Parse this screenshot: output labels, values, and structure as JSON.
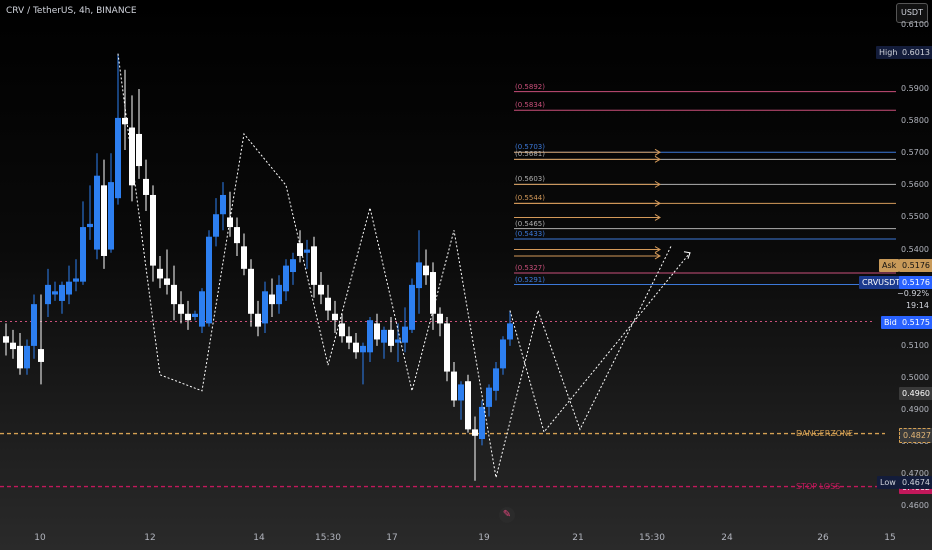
{
  "header": {
    "title": "CRV / TetherUS, 4h, BINANCE",
    "currency_button": "USDT"
  },
  "colors": {
    "up": "#2d7ff0",
    "down": "#ffffff",
    "pattern": "#ffffff",
    "danger": "#d6a153",
    "stoploss": "#c2185b",
    "pink": "#c94f7a",
    "blue": "#3c78d8",
    "orange": "#d49a5a",
    "gray": "#b0b0b0"
  },
  "chart_data": {
    "type": "candlestick",
    "title": "CRV / TetherUS, 4h, BINANCE",
    "x_ticks": [
      "10",
      "12",
      "14",
      "15:30",
      "17",
      "19",
      "21",
      "15:30",
      "24",
      "26",
      "15"
    ],
    "y_ticks": [
      "0.6100",
      "0.5900",
      "0.5800",
      "0.5700",
      "0.5600",
      "0.5500",
      "0.5400",
      "0.5100",
      "0.5000",
      "0.4900",
      "0.4800",
      "0.4700",
      "0.4600"
    ],
    "ylim": [
      0.46,
      0.61
    ],
    "high": "0.6013",
    "low": "0.4674",
    "ask": "0.5176",
    "bid": "0.5175",
    "last": {
      "symbol": "CRVUSDT",
      "price": "0.5176",
      "change": "−0.92%",
      "countdown": "19:14"
    },
    "marker_price": "0.4960",
    "candles": [
      {
        "o": 0.513,
        "h": 0.517,
        "l": 0.507,
        "c": 0.511
      },
      {
        "o": 0.511,
        "h": 0.515,
        "l": 0.506,
        "c": 0.509
      },
      {
        "o": 0.51,
        "h": 0.514,
        "l": 0.501,
        "c": 0.503
      },
      {
        "o": 0.503,
        "h": 0.512,
        "l": 0.501,
        "c": 0.51
      },
      {
        "o": 0.51,
        "h": 0.526,
        "l": 0.506,
        "c": 0.523
      },
      {
        "o": 0.509,
        "h": 0.526,
        "l": 0.498,
        "c": 0.505
      },
      {
        "o": 0.523,
        "h": 0.534,
        "l": 0.519,
        "c": 0.529
      },
      {
        "o": 0.526,
        "h": 0.53,
        "l": 0.524,
        "c": 0.527
      },
      {
        "o": 0.524,
        "h": 0.53,
        "l": 0.52,
        "c": 0.529
      },
      {
        "o": 0.526,
        "h": 0.535,
        "l": 0.523,
        "c": 0.53
      },
      {
        "o": 0.53,
        "h": 0.537,
        "l": 0.527,
        "c": 0.531
      },
      {
        "o": 0.53,
        "h": 0.555,
        "l": 0.529,
        "c": 0.547
      },
      {
        "o": 0.547,
        "h": 0.56,
        "l": 0.543,
        "c": 0.548
      },
      {
        "o": 0.54,
        "h": 0.57,
        "l": 0.537,
        "c": 0.563
      },
      {
        "o": 0.56,
        "h": 0.568,
        "l": 0.534,
        "c": 0.538
      },
      {
        "o": 0.54,
        "h": 0.57,
        "l": 0.539,
        "c": 0.561
      },
      {
        "o": 0.556,
        "h": 0.601,
        "l": 0.554,
        "c": 0.581
      },
      {
        "o": 0.581,
        "h": 0.596,
        "l": 0.571,
        "c": 0.579
      },
      {
        "o": 0.578,
        "h": 0.588,
        "l": 0.555,
        "c": 0.56
      },
      {
        "o": 0.576,
        "h": 0.59,
        "l": 0.562,
        "c": 0.566
      },
      {
        "o": 0.562,
        "h": 0.568,
        "l": 0.552,
        "c": 0.557
      },
      {
        "o": 0.557,
        "h": 0.56,
        "l": 0.53,
        "c": 0.535
      },
      {
        "o": 0.534,
        "h": 0.538,
        "l": 0.528,
        "c": 0.531
      },
      {
        "o": 0.531,
        "h": 0.54,
        "l": 0.526,
        "c": 0.529
      },
      {
        "o": 0.529,
        "h": 0.535,
        "l": 0.518,
        "c": 0.523
      },
      {
        "o": 0.523,
        "h": 0.527,
        "l": 0.517,
        "c": 0.52
      },
      {
        "o": 0.52,
        "h": 0.524,
        "l": 0.515,
        "c": 0.518
      },
      {
        "o": 0.519,
        "h": 0.521,
        "l": 0.518,
        "c": 0.52
      },
      {
        "o": 0.516,
        "h": 0.528,
        "l": 0.514,
        "c": 0.527
      },
      {
        "o": 0.517,
        "h": 0.546,
        "l": 0.516,
        "c": 0.544
      },
      {
        "o": 0.544,
        "h": 0.556,
        "l": 0.541,
        "c": 0.551
      },
      {
        "o": 0.551,
        "h": 0.561,
        "l": 0.546,
        "c": 0.557
      },
      {
        "o": 0.55,
        "h": 0.558,
        "l": 0.544,
        "c": 0.547
      },
      {
        "o": 0.547,
        "h": 0.55,
        "l": 0.538,
        "c": 0.542
      },
      {
        "o": 0.541,
        "h": 0.545,
        "l": 0.532,
        "c": 0.534
      },
      {
        "o": 0.534,
        "h": 0.537,
        "l": 0.516,
        "c": 0.52
      },
      {
        "o": 0.52,
        "h": 0.524,
        "l": 0.513,
        "c": 0.516
      },
      {
        "o": 0.517,
        "h": 0.53,
        "l": 0.514,
        "c": 0.527
      },
      {
        "o": 0.526,
        "h": 0.531,
        "l": 0.519,
        "c": 0.523
      },
      {
        "o": 0.523,
        "h": 0.532,
        "l": 0.52,
        "c": 0.529
      },
      {
        "o": 0.527,
        "h": 0.537,
        "l": 0.524,
        "c": 0.535
      },
      {
        "o": 0.533,
        "h": 0.539,
        "l": 0.529,
        "c": 0.537
      },
      {
        "o": 0.542,
        "h": 0.546,
        "l": 0.536,
        "c": 0.538
      },
      {
        "o": 0.539,
        "h": 0.543,
        "l": 0.534,
        "c": 0.54
      },
      {
        "o": 0.541,
        "h": 0.544,
        "l": 0.525,
        "c": 0.529
      },
      {
        "o": 0.529,
        "h": 0.533,
        "l": 0.523,
        "c": 0.526
      },
      {
        "o": 0.525,
        "h": 0.529,
        "l": 0.518,
        "c": 0.521
      },
      {
        "o": 0.52,
        "h": 0.524,
        "l": 0.514,
        "c": 0.518
      },
      {
        "o": 0.517,
        "h": 0.52,
        "l": 0.511,
        "c": 0.513
      },
      {
        "o": 0.513,
        "h": 0.516,
        "l": 0.509,
        "c": 0.511
      },
      {
        "o": 0.511,
        "h": 0.514,
        "l": 0.506,
        "c": 0.508
      },
      {
        "o": 0.508,
        "h": 0.511,
        "l": 0.498,
        "c": 0.51
      },
      {
        "o": 0.508,
        "h": 0.519,
        "l": 0.505,
        "c": 0.518
      },
      {
        "o": 0.517,
        "h": 0.52,
        "l": 0.51,
        "c": 0.512
      },
      {
        "o": 0.511,
        "h": 0.516,
        "l": 0.506,
        "c": 0.515
      },
      {
        "o": 0.515,
        "h": 0.519,
        "l": 0.508,
        "c": 0.51
      },
      {
        "o": 0.511,
        "h": 0.517,
        "l": 0.505,
        "c": 0.512
      },
      {
        "o": 0.511,
        "h": 0.522,
        "l": 0.508,
        "c": 0.516
      },
      {
        "o": 0.515,
        "h": 0.531,
        "l": 0.514,
        "c": 0.529
      },
      {
        "o": 0.528,
        "h": 0.546,
        "l": 0.52,
        "c": 0.536
      },
      {
        "o": 0.535,
        "h": 0.54,
        "l": 0.529,
        "c": 0.532
      },
      {
        "o": 0.533,
        "h": 0.536,
        "l": 0.515,
        "c": 0.52
      },
      {
        "o": 0.52,
        "h": 0.522,
        "l": 0.513,
        "c": 0.517
      },
      {
        "o": 0.517,
        "h": 0.519,
        "l": 0.499,
        "c": 0.502
      },
      {
        "o": 0.502,
        "h": 0.505,
        "l": 0.491,
        "c": 0.493
      },
      {
        "o": 0.493,
        "h": 0.499,
        "l": 0.487,
        "c": 0.498
      },
      {
        "o": 0.499,
        "h": 0.501,
        "l": 0.483,
        "c": 0.484
      },
      {
        "o": 0.484,
        "h": 0.488,
        "l": 0.468,
        "c": 0.482
      },
      {
        "o": 0.481,
        "h": 0.493,
        "l": 0.479,
        "c": 0.491
      },
      {
        "o": 0.491,
        "h": 0.498,
        "l": 0.488,
        "c": 0.497
      },
      {
        "o": 0.496,
        "h": 0.505,
        "l": 0.493,
        "c": 0.503
      },
      {
        "o": 0.503,
        "h": 0.513,
        "l": 0.501,
        "c": 0.512
      },
      {
        "o": 0.512,
        "h": 0.521,
        "l": 0.51,
        "c": 0.517
      }
    ],
    "pattern_points": [
      [
        16,
        0.601
      ],
      [
        22,
        0.501
      ],
      [
        28,
        0.496
      ],
      [
        34,
        0.576
      ],
      [
        40,
        0.56
      ],
      [
        46,
        0.504
      ],
      [
        52,
        0.553
      ],
      [
        58,
        0.496
      ],
      [
        64,
        0.546
      ],
      [
        70,
        0.469
      ],
      [
        76,
        0.521
      ],
      [
        82,
        0.484
      ],
      [
        95,
        0.541
      ]
    ],
    "levels": [
      {
        "value": 0.5892,
        "label": "(0.5892)",
        "color": "pink",
        "arrow": false
      },
      {
        "value": 0.5834,
        "label": "(0.5834)",
        "color": "pink",
        "arrow": false
      },
      {
        "value": 0.5703,
        "label": "(0.5703)",
        "color": "blue",
        "arrow": true
      },
      {
        "value": 0.5681,
        "label": "(0.5681)",
        "color": "gray",
        "arrow": true
      },
      {
        "value": 0.5603,
        "label": "(0.5603)",
        "color": "gray",
        "arrow": true
      },
      {
        "value": 0.5544,
        "label": "(0.5544)",
        "color": "orange",
        "arrow": true
      },
      {
        "value": 0.5465,
        "label": "(0.5465)",
        "color": "gray",
        "arrow": false
      },
      {
        "value": 0.5433,
        "label": "(0.5433)",
        "color": "blue",
        "arrow": false
      },
      {
        "value": 0.5327,
        "label": "(0.5327)",
        "color": "pink",
        "arrow": false
      },
      {
        "value": 0.5291,
        "label": "(0.5291)",
        "color": "blue",
        "arrow": false
      }
    ],
    "zones": [
      {
        "name": "DANGERZONE",
        "value": "0.4827",
        "color": "danger"
      },
      {
        "name": "STOP LOSS",
        "value": "0.4662",
        "color": "stoploss"
      }
    ]
  }
}
